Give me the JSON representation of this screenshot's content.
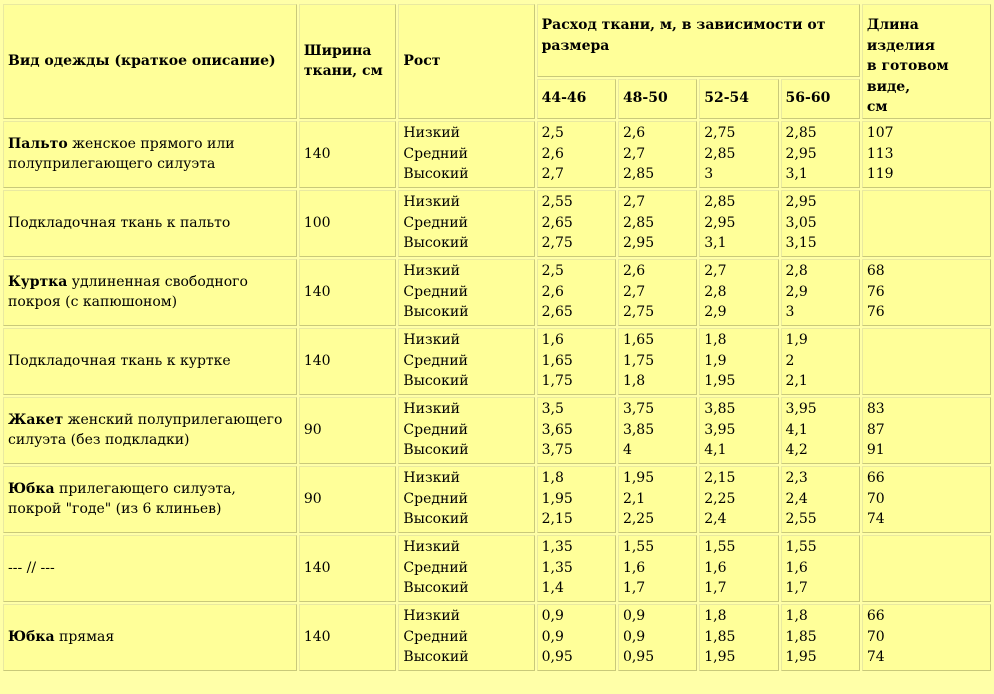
{
  "header": {
    "garment_type": "Вид одежды (краткое описание)",
    "fabric_width_line1": "Ширина",
    "fabric_width_line2": "ткани, см",
    "height": "Рост",
    "consumption_line1": "Расход ткани, м, в зависимости от",
    "consumption_line2": "размера",
    "length_line1": "Длина изделия",
    "length_line2": "в готовом виде,",
    "length_line3": "см",
    "sizes": [
      "44-46",
      "48-50",
      "52-54",
      "56-60"
    ]
  },
  "rows": [
    {
      "title": "Пальто",
      "desc_rest": " женское прямого или полуприлегающего силуэта",
      "width": "140",
      "heights": [
        "Низкий",
        "Средний",
        "Высокий"
      ],
      "sizes": [
        [
          "2,5",
          "2,6",
          "2,7"
        ],
        [
          "2,6",
          "2,7",
          "2,85"
        ],
        [
          "2,75",
          "2,85",
          "3"
        ],
        [
          "2,85",
          "2,95",
          "3,1"
        ]
      ],
      "lengths": [
        "107",
        "113",
        "119"
      ]
    },
    {
      "title": "",
      "desc_rest": "Подкладочная ткань к пальто",
      "width": "100",
      "heights": [
        "Низкий",
        "Средний",
        "Высокий"
      ],
      "sizes": [
        [
          "2,55",
          "2,65",
          "2,75"
        ],
        [
          "2,7",
          "2,85",
          "2,95"
        ],
        [
          "2,85",
          "2,95",
          "3,1"
        ],
        [
          "2,95",
          "3,05",
          "3,15"
        ]
      ],
      "lengths": [
        "",
        "",
        ""
      ]
    },
    {
      "title": "Куртка",
      "desc_rest": " удлиненная свободного покроя (с капюшоном)",
      "width": "140",
      "heights": [
        "Низкий",
        "Средний",
        "Высокий"
      ],
      "sizes": [
        [
          "2,5",
          "2,6",
          "2,65"
        ],
        [
          "2,6",
          "2,7",
          "2,75"
        ],
        [
          "2,7",
          "2,8",
          "2,9"
        ],
        [
          "2,8",
          "2,9",
          "3"
        ]
      ],
      "lengths": [
        "68",
        "76",
        "76"
      ]
    },
    {
      "title": "",
      "desc_rest": "Подкладочная ткань к куртке",
      "width": "140",
      "heights": [
        "Низкий",
        "Средний",
        "Высокий"
      ],
      "sizes": [
        [
          "1,6",
          "1,65",
          "1,75"
        ],
        [
          "1,65",
          "1,75",
          "1,8"
        ],
        [
          "1,8",
          "1,9",
          "1,95"
        ],
        [
          "1,9",
          "2",
          "2,1"
        ]
      ],
      "lengths": [
        "",
        "",
        ""
      ]
    },
    {
      "title": "Жакет",
      "desc_rest": " женский полуприлегающего силуэта (без подкладки)",
      "width": "90",
      "heights": [
        "Низкий",
        "Средний",
        "Высокий"
      ],
      "sizes": [
        [
          "3,5",
          "3,65",
          "3,75"
        ],
        [
          "3,75",
          "3,85",
          "4"
        ],
        [
          "3,85",
          "3,95",
          "4,1"
        ],
        [
          "3,95",
          "4,1",
          "4,2"
        ]
      ],
      "lengths": [
        "83",
        "87",
        "91"
      ]
    },
    {
      "title": "Юбка",
      "desc_rest": " прилегающего силуэта, покрой \"годе\" (из 6 клиньев)",
      "width": "90",
      "heights": [
        "Низкий",
        "Средний",
        "Высокий"
      ],
      "sizes": [
        [
          "1,8",
          "1,95",
          "2,15"
        ],
        [
          "1,95",
          "2,1",
          "2,25"
        ],
        [
          "2,15",
          "2,25",
          "2,4"
        ],
        [
          "2,3",
          "2,4",
          "2,55"
        ]
      ],
      "lengths": [
        "66",
        "70",
        "74"
      ]
    },
    {
      "title": "",
      "desc_rest": "--- // ---",
      "width": "140",
      "heights": [
        "Низкий",
        "Средний",
        "Высокий"
      ],
      "sizes": [
        [
          "1,35",
          "1,35",
          "1,4"
        ],
        [
          "1,55",
          "1,6",
          "1,7"
        ],
        [
          "1,55",
          "1,6",
          "1,7"
        ],
        [
          "1,55",
          "1,6",
          "1,7"
        ]
      ],
      "lengths": [
        "",
        "",
        ""
      ]
    },
    {
      "title": "Юбка",
      "desc_rest": " прямая",
      "width": "140",
      "heights": [
        "Низкий",
        "Средний",
        "Высокий"
      ],
      "sizes": [
        [
          "0,9",
          "0,9",
          "0,95"
        ],
        [
          "0,9",
          "0,9",
          "0,95"
        ],
        [
          "1,8",
          "1,85",
          "1,95"
        ],
        [
          "1,8",
          "1,85",
          "1,95"
        ]
      ],
      "lengths": [
        "66",
        "70",
        "74"
      ]
    }
  ]
}
